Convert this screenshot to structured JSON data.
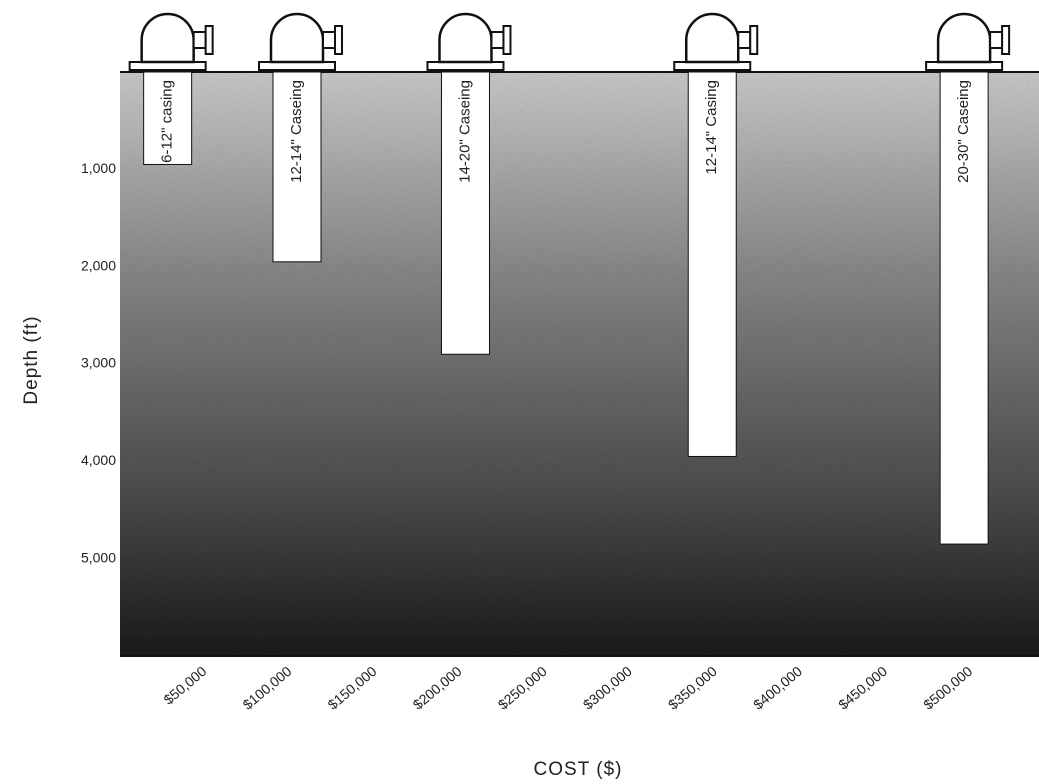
{
  "chart_data": {
    "type": "bar",
    "x": [
      28000,
      104000,
      203000,
      348000,
      496000
    ],
    "values": [
      950,
      1950,
      2900,
      3950,
      4850
    ],
    "labels": [
      "6-12\" casing",
      "12-14\" Caseing",
      "14-20\" Caseing",
      "12-14\" Casing",
      "20-30\" Caseing"
    ],
    "color": "#ffffff",
    "xlabel": "COST ($)",
    "ylabel": "Depth (ft)",
    "xlim": [
      0,
      540000
    ],
    "xticks": [
      {
        "value": 50000,
        "label": "$50,000"
      },
      {
        "value": 100000,
        "label": "$100,000"
      },
      {
        "value": 150000,
        "label": "$150,000"
      },
      {
        "value": 200000,
        "label": "$200,000"
      },
      {
        "value": 250000,
        "label": "$250,000"
      },
      {
        "value": 300000,
        "label": "$300,000"
      },
      {
        "value": 350000,
        "label": "$350,000"
      },
      {
        "value": 400000,
        "label": "$400,000"
      },
      {
        "value": 450000,
        "label": "$450,000"
      },
      {
        "value": 500000,
        "label": "$500,000"
      }
    ],
    "ylim": [
      0,
      6000
    ],
    "yticks": [
      {
        "value": 1000,
        "label": "1,000"
      },
      {
        "value": 2000,
        "label": "2,000"
      },
      {
        "value": 3000,
        "label": "3,000"
      },
      {
        "value": 4000,
        "label": "4,000"
      },
      {
        "value": 5000,
        "label": "5,000"
      }
    ],
    "y_inverted": true,
    "grid": false
  }
}
